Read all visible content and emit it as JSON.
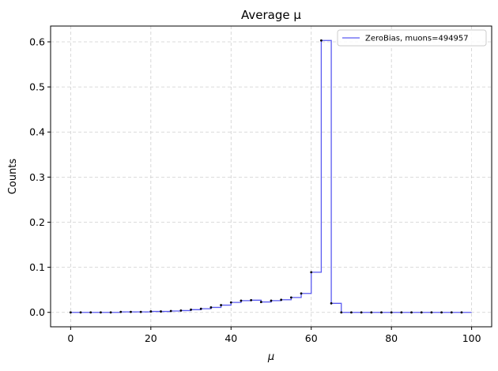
{
  "chart_data": {
    "type": "line",
    "title": "Average μ",
    "xlabel": "μ",
    "ylabel": "Counts",
    "xlim": [
      -5,
      105
    ],
    "ylim": [
      -0.032,
      0.635
    ],
    "xticks": [
      0,
      20,
      40,
      60,
      80,
      100
    ],
    "yticks": [
      0.0,
      0.1,
      0.2,
      0.3,
      0.4,
      0.5,
      0.6
    ],
    "xtick_labels": [
      "0",
      "20",
      "40",
      "60",
      "80",
      "100"
    ],
    "ytick_labels": [
      "0.0",
      "0.1",
      "0.2",
      "0.3",
      "0.4",
      "0.5",
      "0.6"
    ],
    "grid": true,
    "legend_position": "top-right",
    "series": [
      {
        "name": "ZeroBias, muons=494957",
        "color": "#5a5af0",
        "style": "step",
        "bin_edges": [
          0,
          2.5,
          5,
          7.5,
          10,
          12.5,
          15,
          17.5,
          20,
          22.5,
          25,
          27.5,
          30,
          32.5,
          35,
          37.5,
          40,
          42.5,
          45,
          47.5,
          50,
          52.5,
          55,
          57.5,
          60,
          62.5,
          65,
          67.5,
          70,
          72.5,
          75,
          77.5,
          80,
          82.5,
          85,
          87.5,
          90,
          92.5,
          95,
          97.5,
          100
        ],
        "x": [
          0,
          2.5,
          5,
          7.5,
          10,
          12.5,
          15,
          17.5,
          20,
          22.5,
          25,
          27.5,
          30,
          32.5,
          35,
          37.5,
          40,
          42.5,
          45,
          47.5,
          50,
          52.5,
          55,
          57.5,
          60,
          62.5,
          65,
          67.5,
          70,
          72.5,
          75,
          77.5,
          80,
          82.5,
          85,
          87.5,
          90,
          92.5,
          95,
          97.5
        ],
        "values": [
          0.0,
          0.0,
          0.0,
          0.0,
          0.0,
          0.001,
          0.001,
          0.001,
          0.002,
          0.002,
          0.003,
          0.004,
          0.006,
          0.008,
          0.011,
          0.016,
          0.022,
          0.026,
          0.027,
          0.023,
          0.026,
          0.028,
          0.033,
          0.042,
          0.089,
          0.603,
          0.02,
          0.0,
          0.0,
          0.0,
          0.0,
          0.0,
          0.0,
          0.0,
          0.0,
          0.0,
          0.0,
          0.0,
          0.0,
          0.0
        ]
      }
    ]
  }
}
